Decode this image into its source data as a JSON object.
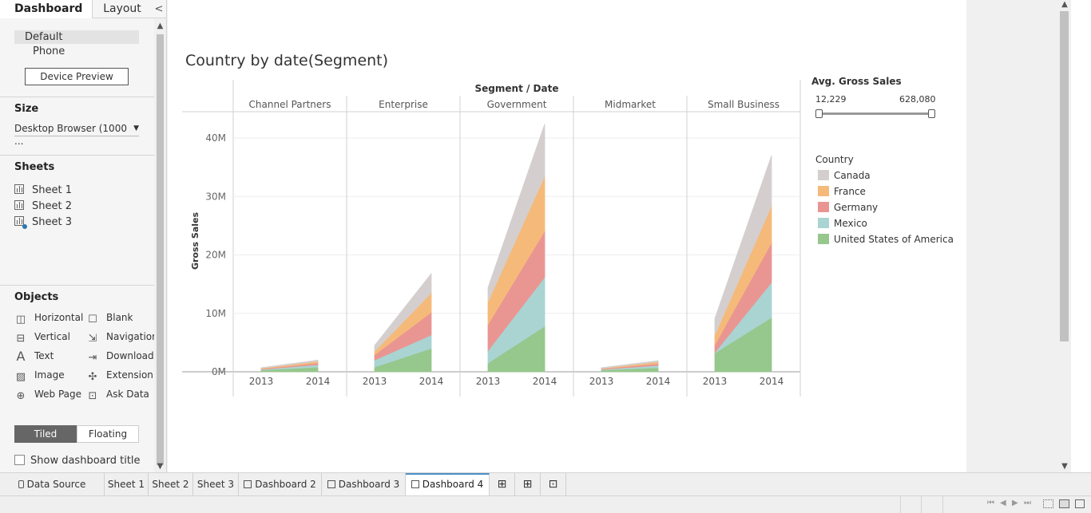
{
  "left_pane": {
    "tabs": {
      "dashboard": "Dashboard",
      "layout": "Layout",
      "collapse": "<"
    },
    "devices": {
      "default": "Default",
      "phone": "Phone",
      "preview_button": "Device Preview"
    },
    "size": {
      "heading": "Size",
      "value": "Desktop Browser (1000 ..."
    },
    "sheets": {
      "heading": "Sheets",
      "items": [
        "Sheet 1",
        "Sheet 2",
        "Sheet 3"
      ]
    },
    "objects": {
      "heading": "Objects",
      "items": [
        {
          "label": "Horizontal",
          "icon": "horizontal-container-icon"
        },
        {
          "label": "Blank",
          "icon": "blank-icon"
        },
        {
          "label": "Vertical",
          "icon": "vertical-container-icon"
        },
        {
          "label": "Navigation",
          "icon": "navigation-icon"
        },
        {
          "label": "Text",
          "icon": "text-icon"
        },
        {
          "label": "Download",
          "icon": "download-icon"
        },
        {
          "label": "Image",
          "icon": "image-icon"
        },
        {
          "label": "Extension",
          "icon": "extension-icon"
        },
        {
          "label": "Web Page",
          "icon": "web-page-icon"
        },
        {
          "label": "Ask Data",
          "icon": "ask-data-icon"
        }
      ]
    },
    "layout_mode": {
      "tiled": "Tiled",
      "floating": "Floating",
      "selected": "Tiled"
    },
    "show_title_label": "Show dashboard title"
  },
  "dashboard": {
    "title": "Country by date(Segment)",
    "column_header": "Segment / Date",
    "filter": {
      "title": "Avg. Gross Sales",
      "min": "12,229",
      "max": "628,080"
    },
    "legend": {
      "title": "Country",
      "items": [
        {
          "label": "Canada",
          "color": "#d4cfce"
        },
        {
          "label": "France",
          "color": "#f5ba7a"
        },
        {
          "label": "Germany",
          "color": "#e99693"
        },
        {
          "label": "Mexico",
          "color": "#a9d4d2"
        },
        {
          "label": "United States of America",
          "color": "#96c78c"
        }
      ]
    }
  },
  "chart_data": {
    "type": "area",
    "stacked": true,
    "panels": [
      "Channel Partners",
      "Enterprise",
      "Government",
      "Midmarket",
      "Small Business"
    ],
    "categories": [
      "2013",
      "2014"
    ],
    "ylabel": "Gross Sales",
    "yticks": [
      "0M",
      "10M",
      "20M",
      "30M",
      "40M"
    ],
    "ylim": [
      0,
      45
    ],
    "units": "M",
    "series": [
      {
        "name": "United States of America",
        "color": "#96c78c",
        "values": [
          [
            0.3,
            0.8
          ],
          [
            0.8,
            4.0
          ],
          [
            1.5,
            7.8
          ],
          [
            0.3,
            0.7
          ],
          [
            3.2,
            9.3
          ]
        ]
      },
      {
        "name": "Mexico",
        "color": "#a9d4d2",
        "values": [
          [
            0.1,
            0.4
          ],
          [
            1.2,
            2.3
          ],
          [
            2.1,
            8.4
          ],
          [
            0.1,
            0.4
          ],
          [
            0.1,
            6.0
          ]
        ]
      },
      {
        "name": "Germany",
        "color": "#e99693",
        "values": [
          [
            0.1,
            0.3
          ],
          [
            0.9,
            3.9
          ],
          [
            4.5,
            7.9
          ],
          [
            0.1,
            0.3
          ],
          [
            1.3,
            6.8
          ]
        ]
      },
      {
        "name": "France",
        "color": "#f5ba7a",
        "values": [
          [
            0.1,
            0.3
          ],
          [
            0.6,
            3.3
          ],
          [
            3.9,
            9.4
          ],
          [
            0.1,
            0.3
          ],
          [
            1.7,
            6.3
          ]
        ]
      },
      {
        "name": "Canada",
        "color": "#d4cfce",
        "values": [
          [
            0.1,
            0.2
          ],
          [
            1.0,
            3.3
          ],
          [
            2.4,
            8.9
          ],
          [
            0.1,
            0.2
          ],
          [
            2.8,
            8.6
          ]
        ]
      }
    ],
    "grid": true,
    "legend_position": "right"
  },
  "bottom_tabs": {
    "items": [
      {
        "label": "Data Source",
        "active": false
      },
      {
        "label": "Sheet 1",
        "active": false
      },
      {
        "label": "Sheet 2",
        "active": false
      },
      {
        "label": "Sheet 3",
        "active": false
      },
      {
        "label": "Dashboard 2",
        "active": false
      },
      {
        "label": "Dashboard 3",
        "active": false
      },
      {
        "label": "Dashboard 4",
        "active": true
      }
    ],
    "new_icons": [
      "new-worksheet-icon",
      "new-dashboard-icon",
      "new-story-icon"
    ]
  }
}
